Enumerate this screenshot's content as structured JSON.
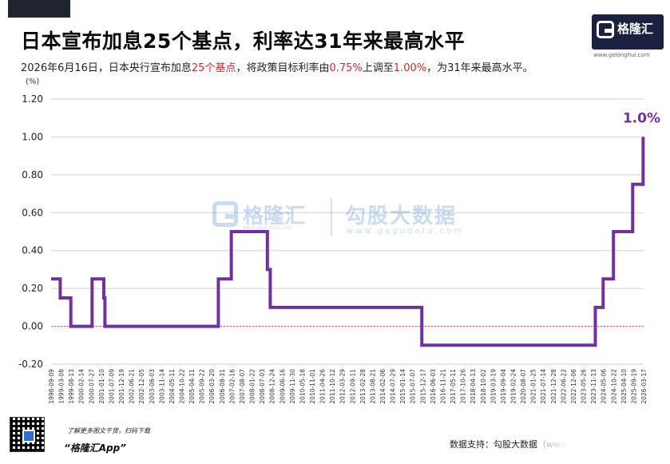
{
  "header": {
    "title": "日本宣布加息25个基点，利率达31年来最高水平",
    "subtitle_parts": [
      {
        "text": "2026年6月16日，日本央行宣布加息",
        "hl": false
      },
      {
        "text": "25个基点",
        "hl": true
      },
      {
        "text": "，将政策目标利率由",
        "hl": false
      },
      {
        "text": "0.75%",
        "hl": true
      },
      {
        "text": "上调至",
        "hl": false
      },
      {
        "text": "1.00%",
        "hl": true
      },
      {
        "text": "，为31年来最高水平。",
        "hl": false
      }
    ]
  },
  "logo": {
    "name": "格隆汇",
    "url": "www.gelonghui.com"
  },
  "watermark": {
    "brand": "格隆汇",
    "brand_url": "www.gelonghui.com",
    "brand2": "勾股大数据",
    "url2": "www.gogudata.com"
  },
  "footer": {
    "qr_note": "了解更多图文干货，扫码下载",
    "app": "“格隆汇App”",
    "source": "数据支持：勾股大数据（www.g"
  },
  "colors": {
    "line": "#7030a0",
    "grid": "#cfd2d8",
    "zero_line": "#e05050",
    "highlight": "#e02424",
    "logo_bg": "#1b2240"
  },
  "chart_data": {
    "type": "line",
    "unit_label": "(%)",
    "ylim": [
      -0.2,
      1.2
    ],
    "yticks": [
      "1.20",
      "1.00",
      "0.80",
      "0.60",
      "0.40",
      "0.20",
      "0.00",
      "-0.20"
    ],
    "ytick_values": [
      1.2,
      1.0,
      0.8,
      0.6,
      0.4,
      0.2,
      0.0,
      -0.2
    ],
    "x_tick_labels": [
      "1998-09-09",
      "1999-03-08",
      "1999-08-13",
      "2000-02-14",
      "2000-07-27",
      "2001-01-10",
      "2001-07-09",
      "2001-12-19",
      "2002-06-21",
      "2002-12-05",
      "2003-06-03",
      "2003-11-14",
      "2004-05-11",
      "2004-10-22",
      "2005-04-11",
      "2005-09-22",
      "2006-03-20",
      "2006-08-31",
      "2007-02-16",
      "2007-08-07",
      "2008-01-22",
      "2008-07-03",
      "2008-12-24",
      "2009-06-16",
      "2009-11-30",
      "2010-05-18",
      "2010-11-01",
      "2011-04-26",
      "2011-10-12",
      "2012-03-29",
      "2012-09-11",
      "2013-02-28",
      "2013-08-21",
      "2014-02-06",
      "2014-07-29",
      "2015-01-14",
      "2015-07-07",
      "2015-12-17",
      "2016-06-03",
      "2016-11-21",
      "2017-05-11",
      "2017-10-26",
      "2018-04-13",
      "2018-10-02",
      "2019-03-19",
      "2019-09-04",
      "2019-02-24",
      "2020-08-07",
      "2021-01-25",
      "2021-07-14",
      "2021-12-28",
      "2022-06-22",
      "2022-12-06",
      "2023-05-26",
      "2023-11-13",
      "2024-05-06",
      "2024-10-22",
      "2025-04-10",
      "2025-09-19",
      "2026-03-17"
    ],
    "series": [
      {
        "values": [
          {
            "x": "1998-09-09",
            "y": 0.25
          },
          {
            "x": "1999-02-12",
            "y": 0.15
          },
          {
            "x": "1999-08-13",
            "y": 0.0
          },
          {
            "x": "2000-08-11",
            "y": 0.25
          },
          {
            "x": "2001-02-28",
            "y": 0.15
          },
          {
            "x": "2001-03-19",
            "y": 0.0
          },
          {
            "x": "2006-07-14",
            "y": 0.25
          },
          {
            "x": "2007-02-21",
            "y": 0.5
          },
          {
            "x": "2008-10-31",
            "y": 0.3
          },
          {
            "x": "2008-12-19",
            "y": 0.1
          },
          {
            "x": "2016-01-29",
            "y": -0.1
          },
          {
            "x": "2024-03-19",
            "y": 0.1
          },
          {
            "x": "2024-07-31",
            "y": 0.25
          },
          {
            "x": "2025-01-24",
            "y": 0.5
          },
          {
            "x": "2025-12-19",
            "y": 0.75
          },
          {
            "x": "2026-06-16",
            "y": 1.0
          }
        ]
      }
    ],
    "end_label": "1.0%",
    "grid": true,
    "zero_line": true
  }
}
